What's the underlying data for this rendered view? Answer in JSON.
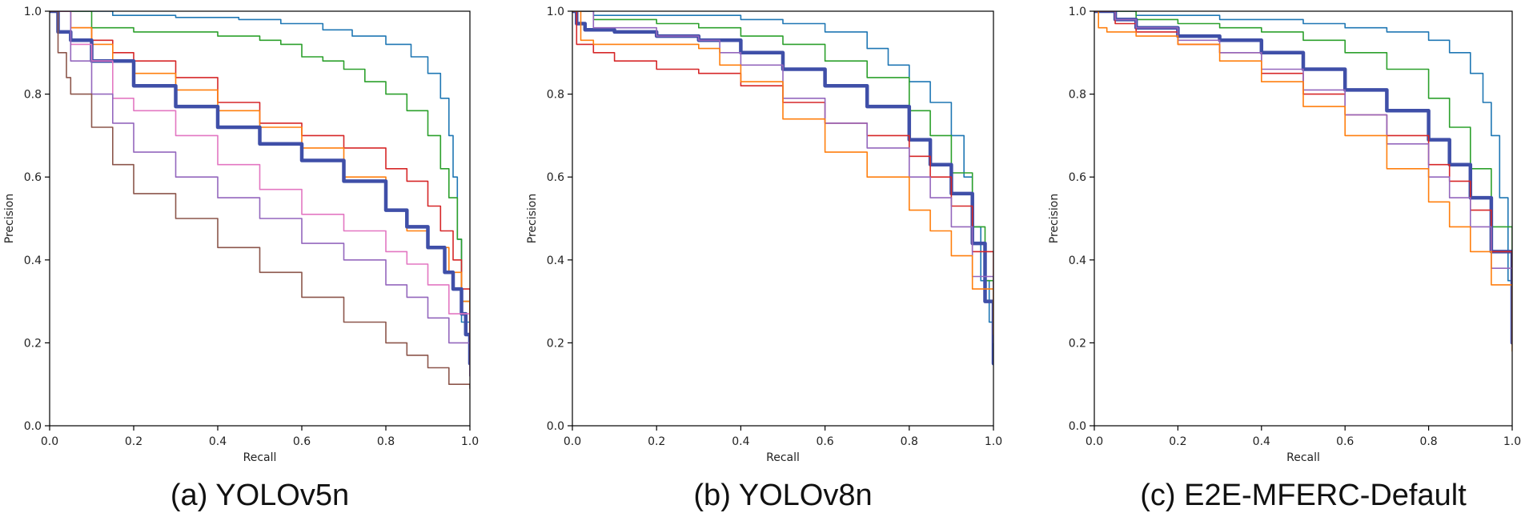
{
  "chart_data": [
    {
      "type": "line",
      "caption": "(a) YOLOv5n",
      "xlabel": "Recall",
      "ylabel": "Precision",
      "xlim": [
        0,
        1
      ],
      "ylim": [
        0,
        1
      ],
      "xticks": [
        "0.0",
        "0.2",
        "0.4",
        "0.6",
        "0.8",
        "1.0"
      ],
      "yticks": [
        "0.0",
        "0.2",
        "0.4",
        "0.6",
        "0.8",
        "1.0"
      ],
      "grid": false,
      "series": [
        {
          "color": "#1f77b4",
          "width": 1.6,
          "x": [
            0,
            0.05,
            0.15,
            0.3,
            0.45,
            0.55,
            0.65,
            0.72,
            0.8,
            0.86,
            0.9,
            0.93,
            0.95,
            0.96,
            0.97,
            0.98,
            1.0
          ],
          "y": [
            1.0,
            1.0,
            0.99,
            0.985,
            0.98,
            0.97,
            0.955,
            0.94,
            0.92,
            0.89,
            0.85,
            0.79,
            0.7,
            0.6,
            0.45,
            0.25,
            0.15
          ]
        },
        {
          "color": "#2ca02c",
          "width": 1.6,
          "x": [
            0,
            0.1,
            0.2,
            0.3,
            0.4,
            0.5,
            0.55,
            0.6,
            0.65,
            0.7,
            0.75,
            0.8,
            0.85,
            0.9,
            0.93,
            0.95,
            0.97,
            0.98,
            1.0
          ],
          "y": [
            1.0,
            0.96,
            0.95,
            0.95,
            0.94,
            0.93,
            0.92,
            0.89,
            0.88,
            0.86,
            0.83,
            0.8,
            0.76,
            0.7,
            0.62,
            0.55,
            0.45,
            0.3,
            0.2
          ]
        },
        {
          "color": "#d62728",
          "width": 1.6,
          "x": [
            0,
            0.05,
            0.1,
            0.15,
            0.2,
            0.3,
            0.4,
            0.5,
            0.6,
            0.7,
            0.8,
            0.85,
            0.9,
            0.93,
            0.96,
            0.98,
            1.0
          ],
          "y": [
            1.0,
            0.96,
            0.93,
            0.9,
            0.88,
            0.84,
            0.78,
            0.73,
            0.7,
            0.67,
            0.62,
            0.59,
            0.53,
            0.47,
            0.4,
            0.33,
            0.2
          ]
        },
        {
          "color": "#ff7f0e",
          "width": 1.6,
          "x": [
            0,
            0.05,
            0.1,
            0.15,
            0.2,
            0.3,
            0.4,
            0.5,
            0.6,
            0.7,
            0.8,
            0.85,
            0.9,
            0.95,
            0.98,
            1.0
          ],
          "y": [
            1.0,
            0.96,
            0.92,
            0.88,
            0.85,
            0.81,
            0.76,
            0.72,
            0.67,
            0.6,
            0.52,
            0.47,
            0.43,
            0.37,
            0.3,
            0.22
          ]
        },
        {
          "color": "#3f4fa8",
          "width": 4.5,
          "x": [
            0,
            0.02,
            0.05,
            0.1,
            0.2,
            0.3,
            0.4,
            0.5,
            0.6,
            0.7,
            0.8,
            0.85,
            0.9,
            0.94,
            0.96,
            0.98,
            0.99,
            1.0
          ],
          "y": [
            1.0,
            0.95,
            0.93,
            0.88,
            0.82,
            0.77,
            0.72,
            0.68,
            0.64,
            0.59,
            0.52,
            0.48,
            0.43,
            0.37,
            0.33,
            0.27,
            0.22,
            0.15
          ]
        },
        {
          "color": "#e377c2",
          "width": 1.6,
          "x": [
            0,
            0.05,
            0.1,
            0.15,
            0.2,
            0.3,
            0.4,
            0.5,
            0.6,
            0.7,
            0.8,
            0.85,
            0.9,
            0.95,
            1.0
          ],
          "y": [
            1.0,
            0.92,
            0.88,
            0.79,
            0.76,
            0.7,
            0.63,
            0.57,
            0.51,
            0.47,
            0.42,
            0.39,
            0.34,
            0.27,
            0.12
          ]
        },
        {
          "color": "#9467bd",
          "width": 1.6,
          "x": [
            0,
            0.05,
            0.1,
            0.15,
            0.2,
            0.3,
            0.4,
            0.5,
            0.6,
            0.7,
            0.8,
            0.85,
            0.9,
            0.95,
            1.0
          ],
          "y": [
            1.0,
            0.88,
            0.8,
            0.73,
            0.66,
            0.6,
            0.55,
            0.5,
            0.44,
            0.4,
            0.34,
            0.31,
            0.26,
            0.2,
            0.12
          ]
        },
        {
          "color": "#8c564b",
          "width": 1.6,
          "x": [
            0,
            0.02,
            0.04,
            0.05,
            0.1,
            0.15,
            0.2,
            0.3,
            0.4,
            0.5,
            0.6,
            0.7,
            0.8,
            0.85,
            0.9,
            0.95,
            1.0
          ],
          "y": [
            1.0,
            0.9,
            0.84,
            0.8,
            0.72,
            0.63,
            0.56,
            0.5,
            0.43,
            0.37,
            0.31,
            0.25,
            0.2,
            0.17,
            0.14,
            0.1,
            0.09
          ]
        }
      ]
    },
    {
      "type": "line",
      "caption": "(b) YOLOv8n",
      "xlabel": "Recall",
      "ylabel": "Precision",
      "xlim": [
        0,
        1
      ],
      "ylim": [
        0,
        1
      ],
      "xticks": [
        "0.0",
        "0.2",
        "0.4",
        "0.6",
        "0.8",
        "1.0"
      ],
      "yticks": [
        "0.0",
        "0.2",
        "0.4",
        "0.6",
        "0.8",
        "1.0"
      ],
      "grid": false,
      "series": [
        {
          "color": "#1f77b4",
          "width": 1.6,
          "x": [
            0,
            0.05,
            0.2,
            0.4,
            0.5,
            0.6,
            0.7,
            0.75,
            0.8,
            0.85,
            0.9,
            0.93,
            0.95,
            0.97,
            0.99,
            1.0
          ],
          "y": [
            1.0,
            0.99,
            0.99,
            0.98,
            0.97,
            0.95,
            0.91,
            0.87,
            0.83,
            0.78,
            0.7,
            0.6,
            0.48,
            0.35,
            0.25,
            0.2
          ]
        },
        {
          "color": "#2ca02c",
          "width": 1.6,
          "x": [
            0,
            0.05,
            0.2,
            0.3,
            0.4,
            0.5,
            0.6,
            0.7,
            0.8,
            0.85,
            0.9,
            0.95,
            0.98,
            1.0
          ],
          "y": [
            1.0,
            0.98,
            0.97,
            0.96,
            0.94,
            0.92,
            0.88,
            0.84,
            0.76,
            0.7,
            0.61,
            0.48,
            0.35,
            0.22
          ]
        },
        {
          "color": "#3f4fa8",
          "width": 4.5,
          "x": [
            0,
            0.01,
            0.03,
            0.1,
            0.2,
            0.3,
            0.4,
            0.5,
            0.6,
            0.7,
            0.8,
            0.85,
            0.9,
            0.95,
            0.98,
            1.0
          ],
          "y": [
            1.0,
            0.97,
            0.955,
            0.95,
            0.94,
            0.93,
            0.9,
            0.86,
            0.82,
            0.77,
            0.69,
            0.63,
            0.56,
            0.44,
            0.3,
            0.15
          ]
        },
        {
          "color": "#d62728",
          "width": 1.6,
          "x": [
            0,
            0.01,
            0.05,
            0.1,
            0.2,
            0.3,
            0.4,
            0.5,
            0.6,
            0.7,
            0.8,
            0.85,
            0.9,
            0.95,
            1.0
          ],
          "y": [
            1.0,
            0.92,
            0.9,
            0.88,
            0.86,
            0.85,
            0.82,
            0.78,
            0.73,
            0.7,
            0.65,
            0.6,
            0.53,
            0.42,
            0.25
          ]
        },
        {
          "color": "#9467bd",
          "width": 1.6,
          "x": [
            0,
            0.05,
            0.2,
            0.3,
            0.35,
            0.4,
            0.5,
            0.6,
            0.7,
            0.8,
            0.85,
            0.9,
            0.95,
            1.0
          ],
          "y": [
            1.0,
            0.96,
            0.94,
            0.93,
            0.9,
            0.87,
            0.79,
            0.73,
            0.67,
            0.6,
            0.55,
            0.48,
            0.36,
            0.2
          ]
        },
        {
          "color": "#ff7f0e",
          "width": 1.6,
          "x": [
            0,
            0.02,
            0.05,
            0.2,
            0.3,
            0.35,
            0.4,
            0.5,
            0.6,
            0.7,
            0.8,
            0.85,
            0.9,
            0.95,
            1.0
          ],
          "y": [
            1.0,
            0.93,
            0.92,
            0.92,
            0.91,
            0.87,
            0.83,
            0.74,
            0.66,
            0.6,
            0.52,
            0.47,
            0.41,
            0.33,
            0.22
          ]
        }
      ]
    },
    {
      "type": "line",
      "caption": "(c) E2E-MFERC-Default",
      "xlabel": "Recall",
      "ylabel": "Precision",
      "xlim": [
        0,
        1
      ],
      "ylim": [
        0,
        1
      ],
      "xticks": [
        "0.0",
        "0.2",
        "0.4",
        "0.6",
        "0.8",
        "1.0"
      ],
      "yticks": [
        "0.0",
        "0.2",
        "0.4",
        "0.6",
        "0.8",
        "1.0"
      ],
      "grid": false,
      "series": [
        {
          "color": "#1f77b4",
          "width": 1.6,
          "x": [
            0,
            0.1,
            0.3,
            0.5,
            0.6,
            0.7,
            0.8,
            0.85,
            0.9,
            0.93,
            0.95,
            0.97,
            0.99,
            1.0
          ],
          "y": [
            1.0,
            0.99,
            0.98,
            0.97,
            0.96,
            0.95,
            0.93,
            0.9,
            0.85,
            0.78,
            0.7,
            0.55,
            0.35,
            0.25
          ]
        },
        {
          "color": "#2ca02c",
          "width": 1.6,
          "x": [
            0,
            0.1,
            0.2,
            0.3,
            0.4,
            0.5,
            0.6,
            0.7,
            0.8,
            0.85,
            0.9,
            0.95,
            1.0
          ],
          "y": [
            1.0,
            0.98,
            0.97,
            0.96,
            0.95,
            0.93,
            0.9,
            0.86,
            0.79,
            0.72,
            0.62,
            0.48,
            0.25
          ]
        },
        {
          "color": "#3f4fa8",
          "width": 4.5,
          "x": [
            0,
            0.05,
            0.1,
            0.2,
            0.3,
            0.4,
            0.5,
            0.6,
            0.7,
            0.8,
            0.85,
            0.9,
            0.95,
            1.0
          ],
          "y": [
            1.0,
            0.98,
            0.96,
            0.94,
            0.93,
            0.9,
            0.86,
            0.81,
            0.76,
            0.69,
            0.63,
            0.55,
            0.42,
            0.2
          ]
        },
        {
          "color": "#d62728",
          "width": 1.6,
          "x": [
            0,
            0.05,
            0.1,
            0.2,
            0.3,
            0.4,
            0.5,
            0.6,
            0.7,
            0.8,
            0.85,
            0.9,
            0.95,
            1.0
          ],
          "y": [
            1.0,
            0.97,
            0.95,
            0.92,
            0.9,
            0.85,
            0.8,
            0.75,
            0.7,
            0.63,
            0.59,
            0.52,
            0.42,
            0.25
          ]
        },
        {
          "color": "#9467bd",
          "width": 1.6,
          "x": [
            0,
            0.05,
            0.1,
            0.2,
            0.3,
            0.4,
            0.5,
            0.6,
            0.7,
            0.8,
            0.85,
            0.9,
            0.95,
            1.0
          ],
          "y": [
            1.0,
            0.98,
            0.96,
            0.93,
            0.9,
            0.86,
            0.81,
            0.75,
            0.68,
            0.6,
            0.55,
            0.48,
            0.38,
            0.2
          ]
        },
        {
          "color": "#ff7f0e",
          "width": 1.6,
          "x": [
            0,
            0.01,
            0.03,
            0.1,
            0.2,
            0.3,
            0.4,
            0.5,
            0.6,
            0.7,
            0.8,
            0.85,
            0.9,
            0.95,
            1.0
          ],
          "y": [
            1.0,
            0.96,
            0.95,
            0.94,
            0.92,
            0.88,
            0.83,
            0.77,
            0.7,
            0.62,
            0.54,
            0.48,
            0.42,
            0.34,
            0.18
          ]
        }
      ]
    }
  ]
}
